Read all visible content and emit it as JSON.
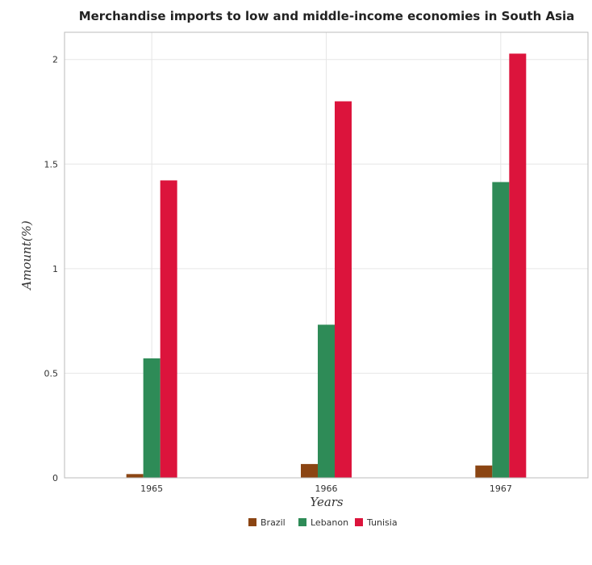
{
  "chart_data": {
    "type": "bar",
    "title": "Merchandise imports to low and middle-income economies in South Asia",
    "xlabel": "Years",
    "ylabel": "Amount(%)",
    "categories": [
      "1965",
      "1966",
      "1967"
    ],
    "series": [
      {
        "name": "Brazil",
        "color": "#8b4513",
        "values": [
          0.018,
          0.066,
          0.059
        ]
      },
      {
        "name": "Lebanon",
        "color": "#2e8b57",
        "values": [
          0.571,
          0.732,
          1.414
        ]
      },
      {
        "name": "Tunisia",
        "color": "#dc143c",
        "values": [
          1.422,
          1.8,
          2.028
        ]
      }
    ],
    "ylim": [
      0,
      2.13
    ],
    "yticks": [
      0,
      0.5,
      1,
      1.5,
      2
    ],
    "ytick_labels": [
      "0",
      "0.5",
      "1",
      "1.5",
      "2"
    ],
    "grid": true,
    "legend_position": "bottom-center"
  }
}
